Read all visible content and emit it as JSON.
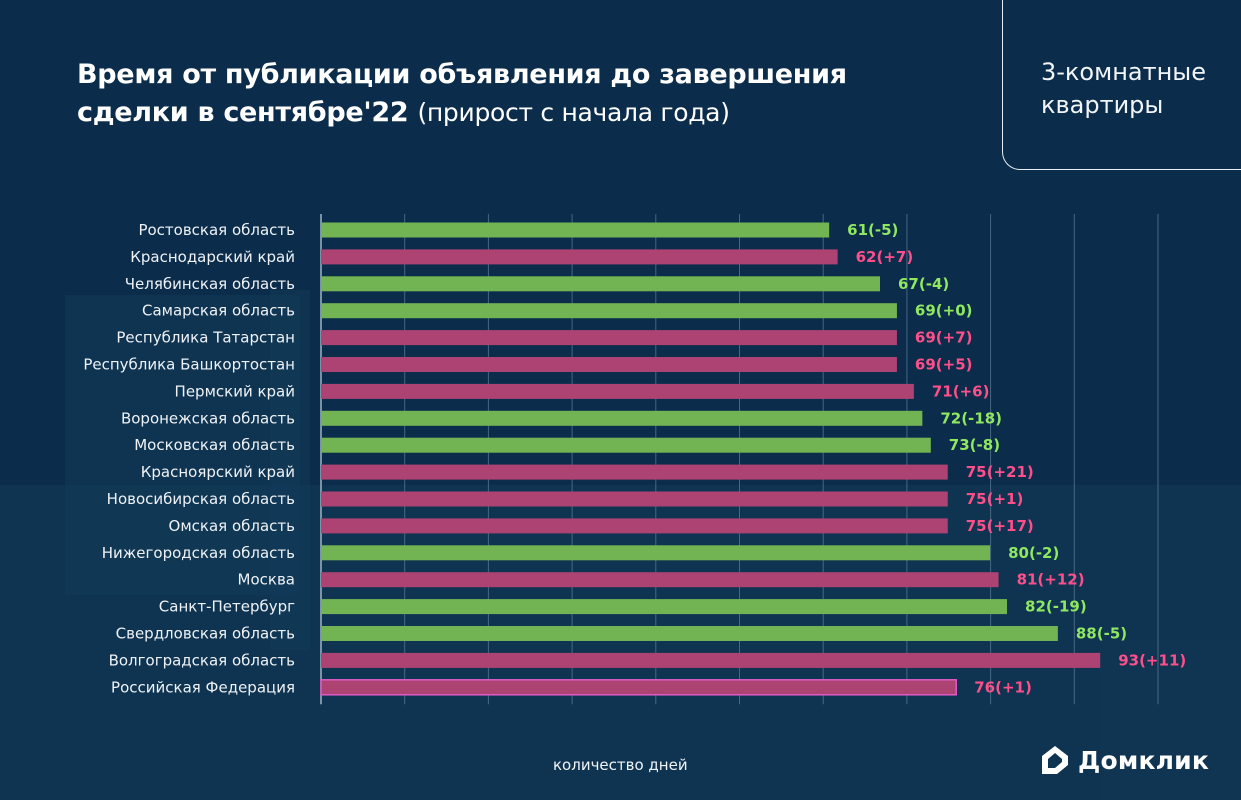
{
  "title": {
    "main_line1": "Время от публикации объявления до завершения",
    "main_line2": "сделки в сентябре'22",
    "subtitle": "(прирост с начала года)"
  },
  "badge": {
    "line1": "3-комнатные",
    "line2": "квартиры"
  },
  "logo": {
    "text": "Домклик",
    "icon": "house-logo-icon"
  },
  "colors": {
    "background": "#0b2d4b",
    "increase_bar": "#ad4373",
    "decrease_bar": "#72b454",
    "increase_label": "#ff4f8b",
    "decrease_label": "#8fe85f",
    "gridline": "#5a7a93"
  },
  "chart_data": {
    "type": "bar",
    "orientation": "horizontal",
    "title": "Время от публикации объявления до завершения сделки в сентябре'22 (прирост с начала года)",
    "xlabel": "количество дней",
    "ylabel": "",
    "xlim": [
      0,
      100
    ],
    "grid": true,
    "legend": "none",
    "categories": [
      "Ростовская область",
      "Краснодарский край",
      "Челябинская область",
      "Самарская область",
      "Республика Татарстан",
      "Республика Башкортостан",
      "Пермский край",
      "Воронежская область",
      "Московская область",
      "Красноярский край",
      "Новосибирская область",
      "Омская область",
      "Нижегородская область",
      "Москва",
      "Санкт-Петербург",
      "Свердловская область",
      "Волгоградская область",
      "Российская Федерация"
    ],
    "series": [
      {
        "name": "дней",
        "values": [
          61,
          62,
          67,
          69,
          69,
          69,
          71,
          72,
          73,
          75,
          75,
          75,
          80,
          81,
          82,
          88,
          93,
          76
        ]
      },
      {
        "name": "прирост с начала года",
        "values": [
          -5,
          7,
          -4,
          0,
          7,
          5,
          6,
          -18,
          -8,
          21,
          1,
          17,
          -2,
          12,
          -19,
          -5,
          11,
          1
        ]
      }
    ],
    "data_labels": [
      "61(-5)",
      "62(+7)",
      "67(-4)",
      "69(+0)",
      "69(+7)",
      "69(+5)",
      "71(+6)",
      "72(-18)",
      "73(-8)",
      "75(+21)",
      "75(+1)",
      "75(+17)",
      "80(-2)",
      "81(+12)",
      "82(-19)",
      "88(-5)",
      "93(+11)",
      "76(+1)"
    ],
    "bar_color_group": [
      "decrease",
      "increase",
      "decrease",
      "decrease",
      "increase",
      "increase",
      "increase",
      "decrease",
      "decrease",
      "increase",
      "increase",
      "increase",
      "decrease",
      "increase",
      "decrease",
      "decrease",
      "increase",
      "increase"
    ]
  }
}
